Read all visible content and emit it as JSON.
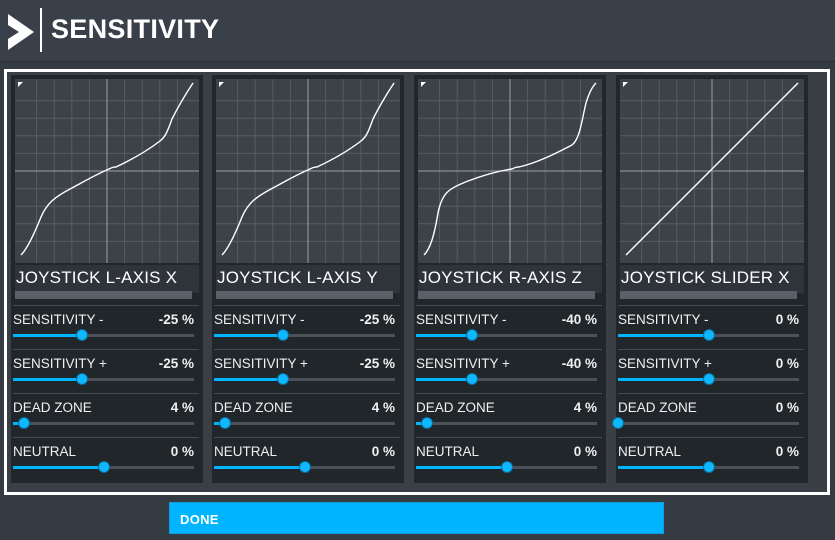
{
  "header": {
    "title": "SENSITIVITY"
  },
  "colors": {
    "accent": "#00b4ff",
    "track": "#4b5159"
  },
  "cards": [
    {
      "title": "JOYSTICK L-AXIS X",
      "curve": "s-curve",
      "rows": [
        {
          "label": "SENSITIVITY -",
          "value": "-25 %",
          "fraction": 0.38
        },
        {
          "label": "SENSITIVITY +",
          "value": "-25 %",
          "fraction": 0.38
        },
        {
          "label": "DEAD ZONE",
          "value": "4 %",
          "fraction": 0.06
        },
        {
          "label": "NEUTRAL",
          "value": "0 %",
          "fraction": 0.5
        }
      ]
    },
    {
      "title": "JOYSTICK L-AXIS Y",
      "curve": "s-curve",
      "rows": [
        {
          "label": "SENSITIVITY -",
          "value": "-25 %",
          "fraction": 0.38
        },
        {
          "label": "SENSITIVITY +",
          "value": "-25 %",
          "fraction": 0.38
        },
        {
          "label": "DEAD ZONE",
          "value": "4 %",
          "fraction": 0.06
        },
        {
          "label": "NEUTRAL",
          "value": "0 %",
          "fraction": 0.5
        }
      ]
    },
    {
      "title": "JOYSTICK R-AXIS Z",
      "curve": "s-curve-strong",
      "rows": [
        {
          "label": "SENSITIVITY -",
          "value": "-40 %",
          "fraction": 0.31
        },
        {
          "label": "SENSITIVITY +",
          "value": "-40 %",
          "fraction": 0.31
        },
        {
          "label": "DEAD ZONE",
          "value": "4 %",
          "fraction": 0.06
        },
        {
          "label": "NEUTRAL",
          "value": "0 %",
          "fraction": 0.5
        }
      ]
    },
    {
      "title": "JOYSTICK SLIDER X",
      "curve": "linear",
      "rows": [
        {
          "label": "SENSITIVITY -",
          "value": "0 %",
          "fraction": 0.5
        },
        {
          "label": "SENSITIVITY +",
          "value": "0 %",
          "fraction": 0.5
        },
        {
          "label": "DEAD ZONE",
          "value": "0 %",
          "fraction": 0.0
        },
        {
          "label": "NEUTRAL",
          "value": "0 %",
          "fraction": 0.5
        }
      ]
    }
  ],
  "done_button": {
    "label": "DONE"
  }
}
